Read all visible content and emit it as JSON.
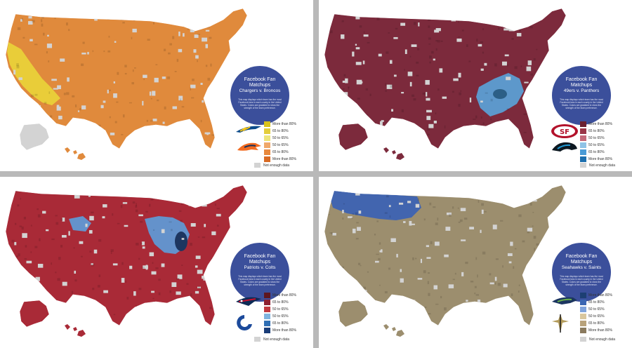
{
  "panels": [
    {
      "title": "Facebook Fan Matchups",
      "subtitle": "Chargers v. Broncos",
      "description": "This map displays which team has the most Facebook fans in each county in the United States. Colors are gradated to show the strength of the team preference.",
      "legend": [
        "More than 80%",
        "65 to 80%",
        "50 to 65%",
        "50 to 65%",
        "65 to 80%",
        "More than 80%"
      ],
      "legend_colors": [
        "#d9c21c",
        "#e3cd3b",
        "#ede57a",
        "#f0a86a",
        "#e8893e",
        "#d86a24"
      ],
      "no_data": "Not enough data",
      "team_a": "chargers-logo",
      "team_b": "broncos-logo",
      "primary": "#e08a3c",
      "secondary": "#e9d23a"
    },
    {
      "title": "Facebook Fan Matchups",
      "subtitle": "49ers v. Panthers",
      "description": "This map displays which team has the most Facebook fans in each county in the United States. Colors are gradated to show the strength of the team preference.",
      "legend": [
        "More than 80%",
        "65 to 80%",
        "50 to 65%",
        "50 to 65%",
        "65 to 80%",
        "More than 80%"
      ],
      "legend_colors": [
        "#6a2030",
        "#9a3648",
        "#c46a7a",
        "#8fc3e6",
        "#4a9bd6",
        "#1d6fae"
      ],
      "no_data": "Not enough data",
      "team_a": "49ers-logo",
      "team_b": "panthers-logo",
      "primary": "#7c2a3c",
      "secondary": "#5aa2d8"
    },
    {
      "title": "Facebook Fan Matchups",
      "subtitle": "Patriots v. Colts",
      "description": "This map displays which team has the most Facebook fans in each county in the United States. Colors are gradated to show the strength of the team preference.",
      "legend": [
        "More than 80%",
        "65 to 80%",
        "50 to 65%",
        "50 to 65%",
        "65 to 80%",
        "More than 80%"
      ],
      "legend_colors": [
        "#5e1620",
        "#8e2030",
        "#c0383f",
        "#7fb4df",
        "#2f6fb4",
        "#1a3d78"
      ],
      "no_data": "Not enough data",
      "team_a": "patriots-logo",
      "team_b": "colts-logo",
      "primary": "#a92a37",
      "secondary": "#5e9bd8"
    },
    {
      "title": "Facebook Fan Matchups",
      "subtitle": "Seahawks v. Saints",
      "description": "This map displays which team has the most Facebook fans in each county in the United States. Colors are gradated to show the strength of the team preference.",
      "legend": [
        "More than 80%",
        "65 to 80%",
        "50 to 65%",
        "50 to 65%",
        "65 to 80%",
        "More than 80%"
      ],
      "legend_colors": [
        "#1d3f73",
        "#3a66b2",
        "#7fa3dc",
        "#d9c79e",
        "#b8a27a",
        "#8a7a5e"
      ],
      "no_data": "Not enough data",
      "team_a": "seahawks-logo",
      "team_b": "saints-logo",
      "primary": "#9c8e6e",
      "secondary": "#3b62b4"
    }
  ]
}
